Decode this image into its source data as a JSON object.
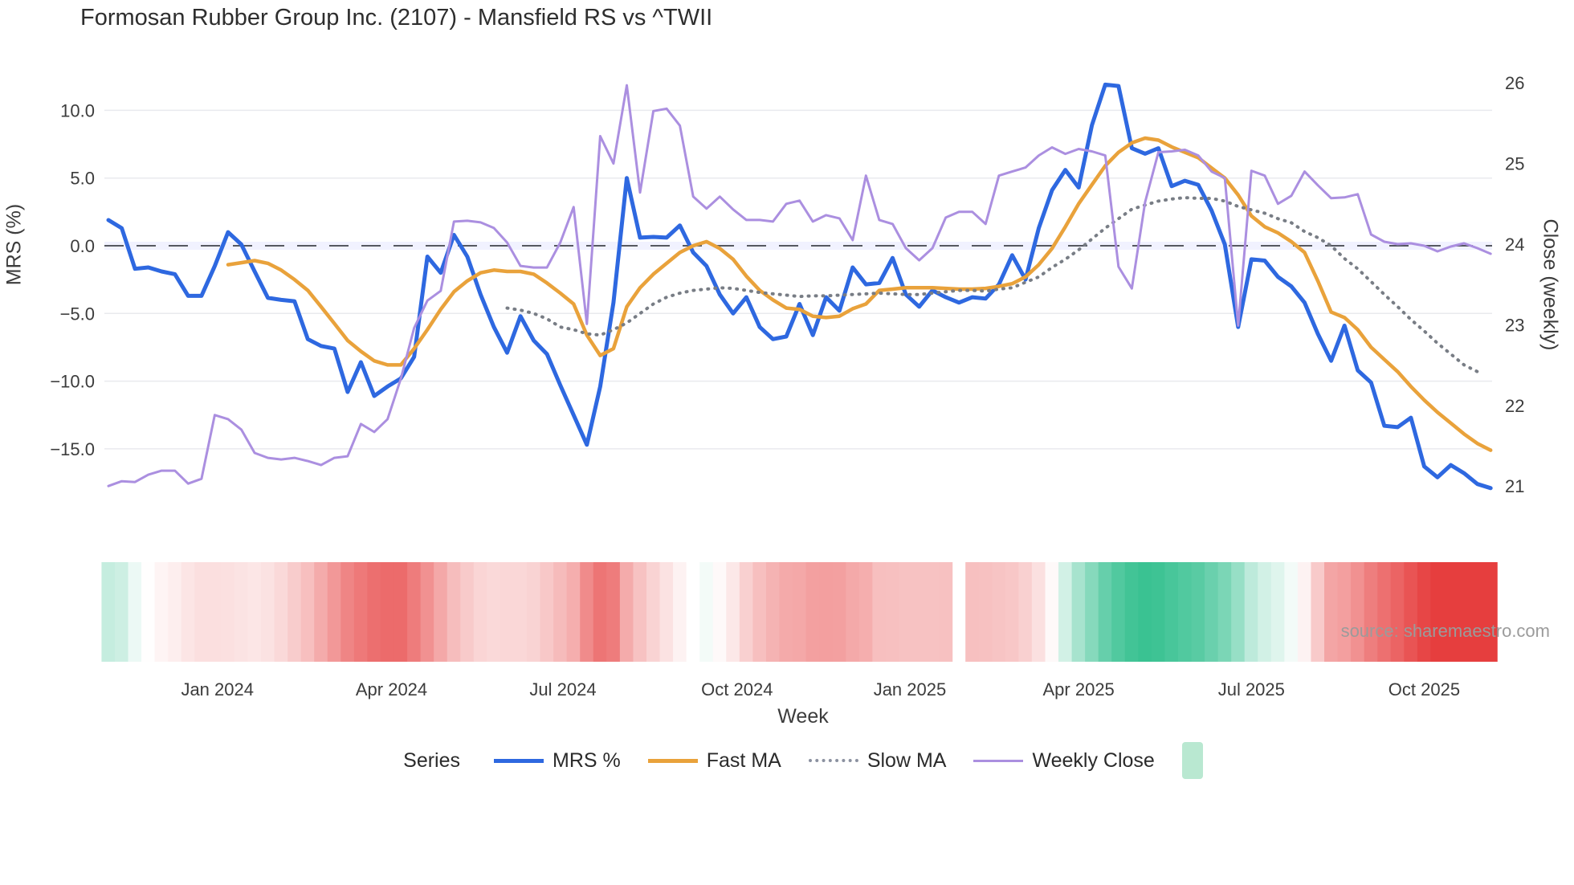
{
  "title": "Formosan Rubber Group Inc. (2107) - Mansfield RS vs ^TWII",
  "source_note": "source: sharemaestro.com",
  "colors": {
    "mrs": "#2e68e0",
    "fast_ma": "#e9a23b",
    "slow_ma": "#787d85",
    "weekly_close": "#ab8fe0",
    "zero_dash": "#565961",
    "zero_band": "rgba(99,110,250,0.09)",
    "gridline": "#e9eaee",
    "heat_red_max": "#e63e3e",
    "heat_green_max": "#2fbe8c",
    "legend_swatch": "#b9e8d1"
  },
  "legend": {
    "title": "Series",
    "items": [
      {
        "label": "MRS %",
        "type": "line",
        "color": "#2e68e0",
        "thickness": 5
      },
      {
        "label": "Fast MA",
        "type": "line",
        "color": "#e9a23b",
        "thickness": 5
      },
      {
        "label": "Slow MA",
        "type": "dotted",
        "color": "#8b91a0",
        "thickness": 4
      },
      {
        "label": "Weekly Close",
        "type": "line",
        "color": "#ab8fe0",
        "thickness": 3
      },
      {
        "label": "",
        "type": "swatch",
        "color": "#b9e8d1"
      }
    ]
  },
  "chart_data": {
    "type": "line",
    "title": "Formosan Rubber Group Inc. (2107) - Mansfield RS vs ^TWII",
    "xlabel": "Week",
    "ylabel_left": "MRS (%)",
    "ylabel_right": "Close (weekly)",
    "x_unit": "week_index",
    "n_weeks": 105,
    "ylim_left": [
      -19,
      13
    ],
    "ylim_right": [
      20.85,
      26.25
    ],
    "grid": "horizontal-only",
    "legend_position": "bottom-center",
    "x_ticks": [
      {
        "label": "Jan 2024",
        "week": 8.2
      },
      {
        "label": "Apr 2024",
        "week": 21.3
      },
      {
        "label": "Jul 2024",
        "week": 34.2
      },
      {
        "label": "Oct 2024",
        "week": 47.3
      },
      {
        "label": "Jan 2025",
        "week": 60.3
      },
      {
        "label": "Apr 2025",
        "week": 73.0
      },
      {
        "label": "Jul 2025",
        "week": 86.0
      },
      {
        "label": "Oct 2025",
        "week": 99.0
      }
    ],
    "y_left_ticks": [
      {
        "v": 10,
        "label": "10.0"
      },
      {
        "v": 5,
        "label": "5.0"
      },
      {
        "v": 0,
        "label": "0.0"
      },
      {
        "v": -5,
        "label": "−5.0"
      },
      {
        "v": -10,
        "label": "−10.0"
      },
      {
        "v": -15,
        "label": "−15.0"
      }
    ],
    "y_right_ticks": [
      {
        "v": 26,
        "label": "26"
      },
      {
        "v": 25,
        "label": "25"
      },
      {
        "v": 24,
        "label": "24"
      },
      {
        "v": 23,
        "label": "23"
      },
      {
        "v": 22,
        "label": "22"
      },
      {
        "v": 21,
        "label": "21"
      }
    ],
    "zero_reference_line": 0,
    "series": [
      {
        "name": "MRS %",
        "axis": "left",
        "style": "solid",
        "width": 5,
        "color": "#2e68e0",
        "values": [
          1.9,
          1.3,
          -1.7,
          -1.6,
          -1.9,
          -2.1,
          -3.7,
          -3.7,
          -1.5,
          1.0,
          0.1,
          -1.9,
          -3.85,
          -4.0,
          -4.1,
          -6.9,
          -7.4,
          -7.6,
          -10.8,
          -8.6,
          -11.1,
          -10.4,
          -9.8,
          -8.2,
          -0.8,
          -2.0,
          0.8,
          -0.8,
          -3.6,
          -6.0,
          -7.9,
          -5.2,
          -7.0,
          -8.0,
          -10.3,
          -12.5,
          -14.7,
          -10.4,
          -4.2,
          5.0,
          0.6,
          0.65,
          0.6,
          1.5,
          -0.5,
          -1.5,
          -3.6,
          -5.0,
          -3.8,
          -6.0,
          -6.9,
          -6.7,
          -4.3,
          -6.6,
          -3.8,
          -4.8,
          -1.6,
          -2.85,
          -2.75,
          -0.9,
          -3.6,
          -4.5,
          -3.3,
          -3.8,
          -4.2,
          -3.8,
          -3.9,
          -2.85,
          -0.7,
          -2.5,
          1.3,
          4.1,
          5.6,
          4.3,
          8.9,
          11.9,
          11.8,
          7.2,
          6.8,
          7.2,
          4.4,
          4.8,
          4.5,
          2.6,
          0.1,
          -6.0,
          -1.0,
          -1.1,
          -2.3,
          -3.0,
          -4.2,
          -6.5,
          -8.5,
          -5.9,
          -9.2,
          -10.1,
          -13.3,
          -13.4,
          -12.7,
          -16.3,
          -17.1,
          -16.2,
          -16.8,
          -17.6,
          -17.9
        ]
      },
      {
        "name": "Fast MA",
        "axis": "left",
        "style": "solid",
        "width": 4.5,
        "color": "#e9a23b",
        "values": [
          null,
          null,
          null,
          null,
          null,
          null,
          null,
          null,
          null,
          -1.4,
          -1.25,
          -1.1,
          -1.3,
          -1.8,
          -2.5,
          -3.3,
          -4.5,
          -5.75,
          -7.0,
          -7.8,
          -8.5,
          -8.8,
          -8.8,
          -7.6,
          -6.2,
          -4.7,
          -3.4,
          -2.6,
          -2.0,
          -1.8,
          -1.9,
          -1.9,
          -2.1,
          -2.75,
          -3.5,
          -4.3,
          -6.6,
          -8.1,
          -7.6,
          -4.5,
          -3.1,
          -2.1,
          -1.3,
          -0.5,
          0.0,
          0.3,
          -0.2,
          -1.0,
          -2.25,
          -3.3,
          -4.0,
          -4.6,
          -4.7,
          -5.2,
          -5.3,
          -5.2,
          -4.65,
          -4.3,
          -3.3,
          -3.2,
          -3.1,
          -3.1,
          -3.1,
          -3.15,
          -3.2,
          -3.2,
          -3.15,
          -3.0,
          -2.8,
          -2.3,
          -1.4,
          -0.2,
          1.4,
          3.1,
          4.5,
          5.9,
          6.9,
          7.6,
          7.95,
          7.8,
          7.3,
          6.9,
          6.5,
          5.75,
          5.0,
          3.75,
          2.2,
          1.4,
          0.95,
          0.3,
          -0.5,
          -2.6,
          -4.9,
          -5.3,
          -6.2,
          -7.5,
          -8.4,
          -9.3,
          -10.4,
          -11.4,
          -12.3,
          -13.1,
          -13.9,
          -14.6,
          -15.1
        ]
      },
      {
        "name": "Slow MA",
        "axis": "left",
        "style": "dotted",
        "width": 4,
        "color": "#787d85",
        "values": [
          null,
          null,
          null,
          null,
          null,
          null,
          null,
          null,
          null,
          null,
          null,
          null,
          null,
          null,
          null,
          null,
          null,
          null,
          null,
          null,
          null,
          null,
          null,
          null,
          null,
          null,
          null,
          null,
          null,
          null,
          -4.6,
          -4.75,
          -5.0,
          -5.4,
          -6.0,
          -6.2,
          -6.5,
          -6.6,
          -6.2,
          -5.7,
          -5.0,
          -4.3,
          -3.8,
          -3.5,
          -3.3,
          -3.2,
          -3.1,
          -3.15,
          -3.3,
          -3.45,
          -3.55,
          -3.65,
          -3.75,
          -3.7,
          -3.7,
          -3.65,
          -3.6,
          -3.55,
          -3.5,
          -3.55,
          -3.6,
          -3.6,
          -3.5,
          -3.4,
          -3.3,
          -3.3,
          -3.35,
          -3.2,
          -3.1,
          -2.7,
          -2.3,
          -1.6,
          -1.0,
          -0.3,
          0.5,
          1.3,
          2.0,
          2.7,
          3.0,
          3.3,
          3.45,
          3.55,
          3.5,
          3.5,
          3.3,
          2.9,
          2.65,
          2.4,
          2.0,
          1.7,
          1.05,
          0.6,
          0.0,
          -0.95,
          -1.7,
          -2.65,
          -3.6,
          -4.5,
          -5.45,
          -6.3,
          -7.2,
          -8.0,
          -8.8,
          -9.3,
          null
        ]
      },
      {
        "name": "Weekly Close",
        "axis": "right",
        "style": "solid",
        "width": 3,
        "color": "#ab8fe0",
        "values": [
          21.0,
          21.06,
          21.05,
          21.14,
          21.19,
          21.19,
          21.03,
          21.09,
          21.88,
          21.83,
          21.7,
          21.41,
          21.35,
          21.33,
          21.35,
          21.31,
          21.26,
          21.35,
          21.37,
          21.77,
          21.67,
          21.83,
          22.33,
          22.96,
          23.3,
          23.42,
          24.28,
          24.29,
          24.27,
          24.2,
          24.02,
          23.73,
          23.71,
          23.71,
          24.02,
          24.46,
          23.01,
          25.34,
          25.0,
          25.97,
          24.64,
          25.65,
          25.68,
          25.47,
          24.59,
          24.44,
          24.59,
          24.43,
          24.3,
          24.3,
          24.28,
          24.5,
          24.54,
          24.28,
          24.36,
          24.32,
          24.05,
          24.85,
          24.3,
          24.25,
          23.95,
          23.8,
          23.95,
          24.33,
          24.4,
          24.4,
          24.25,
          24.85,
          24.9,
          24.95,
          25.1,
          25.2,
          25.12,
          25.18,
          25.15,
          25.1,
          23.72,
          23.45,
          24.52,
          25.14,
          25.15,
          25.17,
          25.1,
          24.9,
          24.82,
          22.99,
          24.91,
          24.85,
          24.5,
          24.6,
          24.9,
          24.73,
          24.57,
          24.58,
          24.62,
          24.12,
          24.03,
          24.0,
          24.01,
          23.98,
          23.91,
          23.97,
          24.01,
          23.95,
          23.88
        ]
      }
    ],
    "heatmap": {
      "type": "heatmap-strip",
      "basis": "Fast MA value per week (red = negative, green = positive)",
      "missing_week_index": 64,
      "red_saturation_at": -12,
      "green_saturation_at": 8.5
    }
  }
}
